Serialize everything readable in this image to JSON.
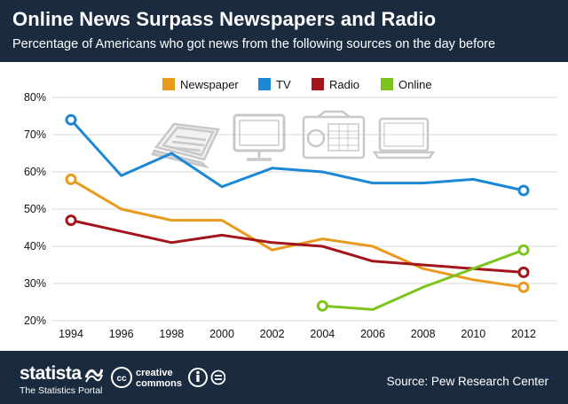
{
  "header": {
    "title": "Online News Surpass Newspapers and Radio",
    "subtitle": "Percentage of Americans who got news from the following sources on the day before"
  },
  "chart_data": {
    "type": "line",
    "title": "Online News Surpass Newspapers and Radio",
    "subtitle": "Percentage of Americans who got news from the following sources on the day before",
    "xlabel": "",
    "ylabel": "",
    "x_ticks": [
      "1994",
      "1996",
      "1998",
      "2000",
      "2002",
      "2004",
      "2006",
      "2008",
      "2010",
      "2012"
    ],
    "y_ticks": [
      "20%",
      "30%",
      "40%",
      "50%",
      "60%",
      "70%",
      "80%"
    ],
    "xlim": [
      1994,
      2012
    ],
    "ylim": [
      20,
      80
    ],
    "grid": true,
    "legend_position": "top-center",
    "series": [
      {
        "name": "Newspaper",
        "color": "#e89a1c",
        "x": [
          1994,
          1996,
          1998,
          2000,
          2002,
          2004,
          2006,
          2008,
          2010,
          2012
        ],
        "values": [
          58,
          50,
          47,
          47,
          39,
          42,
          40,
          34,
          31,
          29
        ]
      },
      {
        "name": "TV",
        "color": "#1c87d4",
        "x": [
          1994,
          1996,
          1998,
          2000,
          2002,
          2004,
          2006,
          2008,
          2010,
          2012
        ],
        "values": [
          74,
          59,
          65,
          56,
          61,
          60,
          57,
          57,
          58,
          55
        ]
      },
      {
        "name": "Radio",
        "color": "#a3151a",
        "x": [
          1994,
          1996,
          1998,
          2000,
          2002,
          2004,
          2006,
          2008,
          2010,
          2012
        ],
        "values": [
          47,
          44,
          41,
          43,
          41,
          40,
          36,
          35,
          34,
          33
        ]
      },
      {
        "name": "Online",
        "color": "#7dc41f",
        "x": [
          2004,
          2006,
          2008,
          2010,
          2012
        ],
        "values": [
          24,
          23,
          29,
          34,
          39
        ]
      }
    ],
    "illustrations": [
      "newspaper-icon",
      "tv-icon",
      "radio-icon",
      "laptop-icon"
    ]
  },
  "footer": {
    "brand": "statista",
    "tagline": "The Statistics Portal",
    "license_line1": "creative",
    "license_line2": "commons",
    "license_cc": "cc",
    "source": "Source: Pew Research Center"
  },
  "colors": {
    "header_bg": "#1b2b3f",
    "grid": "#d9d9d9",
    "axis_text": "#111111",
    "icon_gray": "#c8c8c8"
  }
}
